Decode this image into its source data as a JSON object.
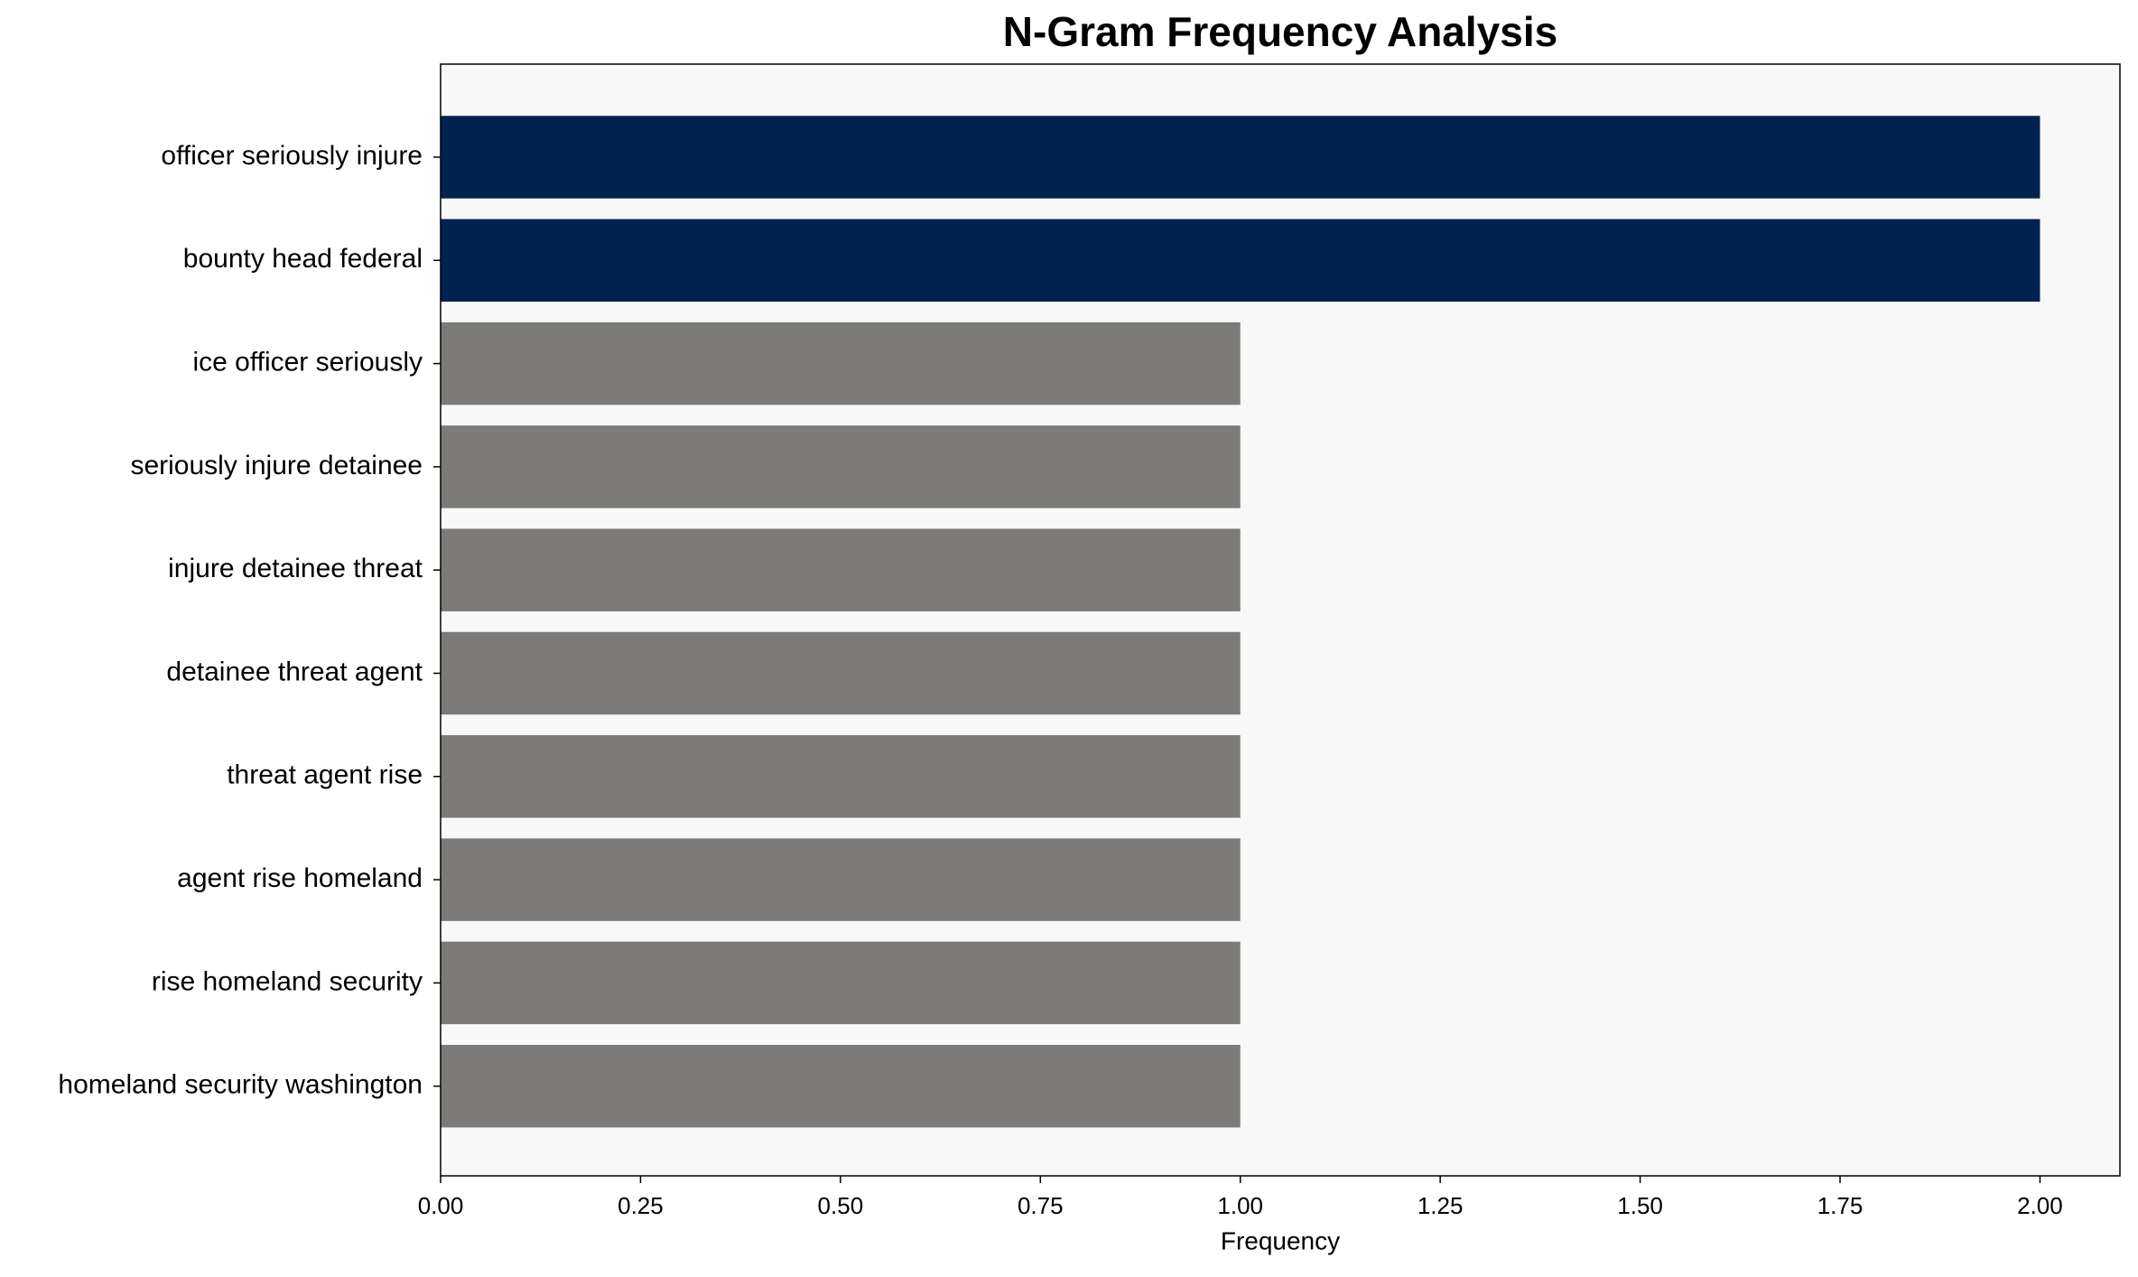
{
  "chart_data": {
    "type": "barh",
    "title": "N-Gram Frequency Analysis",
    "xlabel": "Frequency",
    "categories": [
      "officer seriously injure",
      "bounty head federal",
      "ice officer seriously",
      "seriously injure detainee",
      "injure detainee threat",
      "detainee threat agent",
      "threat agent rise",
      "agent rise homeland",
      "rise homeland security",
      "homeland security washington"
    ],
    "values": [
      2,
      2,
      1,
      1,
      1,
      1,
      1,
      1,
      1,
      1
    ],
    "colors": [
      "#00224e",
      "#00224e",
      "#7c7b78",
      "#7c7b78",
      "#7c7b78",
      "#7c7b78",
      "#7c7b78",
      "#7c7b78",
      "#7c7b78",
      "#7c7b78"
    ],
    "xlim": [
      0,
      2.1
    ],
    "xticks": [
      {
        "value": 0,
        "label": "0.00"
      },
      {
        "value": 0.25,
        "label": "0.25"
      },
      {
        "value": 0.5,
        "label": "0.50"
      },
      {
        "value": 0.75,
        "label": "0.75"
      },
      {
        "value": 1,
        "label": "1.00"
      },
      {
        "value": 1.25,
        "label": "1.25"
      },
      {
        "value": 1.5,
        "label": "1.50"
      },
      {
        "value": 1.75,
        "label": "1.75"
      },
      {
        "value": 2,
        "label": "2.00"
      }
    ],
    "grid": false
  }
}
